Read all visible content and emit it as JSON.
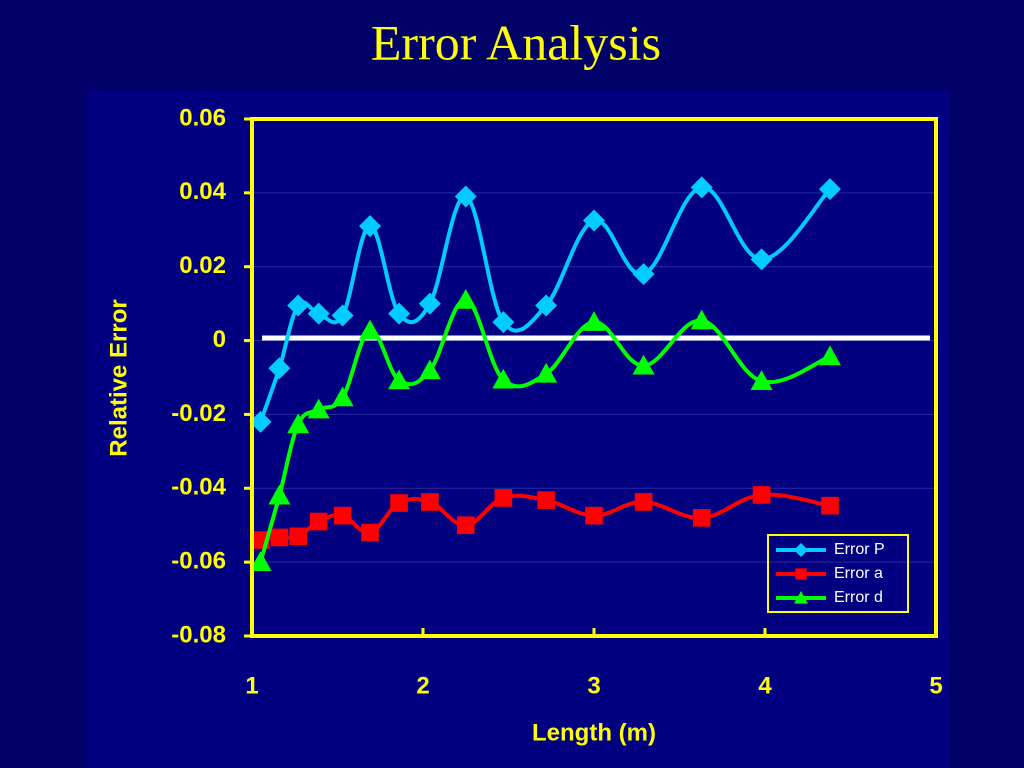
{
  "chart_data": {
    "type": "line",
    "title": "Error Analysis",
    "xlabel": "Length (m)",
    "ylabel": "Relative Error",
    "x": [
      1.05,
      1.16,
      1.27,
      1.39,
      1.53,
      1.69,
      1.86,
      2.04,
      2.25,
      2.47,
      2.72,
      3.0,
      3.29,
      3.63,
      3.98,
      4.38
    ],
    "series": [
      {
        "name": "Error P",
        "color": "#00ccff",
        "marker": "diamond",
        "values": [
          -0.022,
          -0.0075,
          0.0095,
          0.0073,
          0.0068,
          0.031,
          0.0073,
          0.01,
          0.039,
          0.005,
          0.0095,
          0.0325,
          0.018,
          0.0415,
          0.022,
          0.041
        ]
      },
      {
        "name": "Error a",
        "color": "#ff0000",
        "marker": "square",
        "values": [
          -0.054,
          -0.0533,
          -0.053,
          -0.049,
          -0.0474,
          -0.052,
          -0.044,
          -0.0437,
          -0.05,
          -0.0426,
          -0.0432,
          -0.0474,
          -0.0437,
          -0.048,
          -0.0418,
          -0.0447
        ]
      },
      {
        "name": "Error d",
        "color": "#00ff00",
        "marker": "triangle",
        "values": [
          -0.06,
          -0.042,
          -0.0227,
          -0.0187,
          -0.0154,
          0.0027,
          -0.0108,
          -0.0081,
          0.011,
          -0.0106,
          -0.009,
          0.005,
          -0.0068,
          0.0054,
          -0.011,
          -0.0043
        ]
      }
    ],
    "xlim": [
      1,
      5
    ],
    "xticks": [
      1,
      2,
      3,
      4,
      5
    ],
    "ylim": [
      -0.08,
      0.06
    ],
    "yticks": [
      -0.08,
      -0.06,
      -0.04,
      -0.02,
      0,
      0.02,
      0.04,
      0.06
    ],
    "grid": true,
    "legend": "lower right"
  }
}
